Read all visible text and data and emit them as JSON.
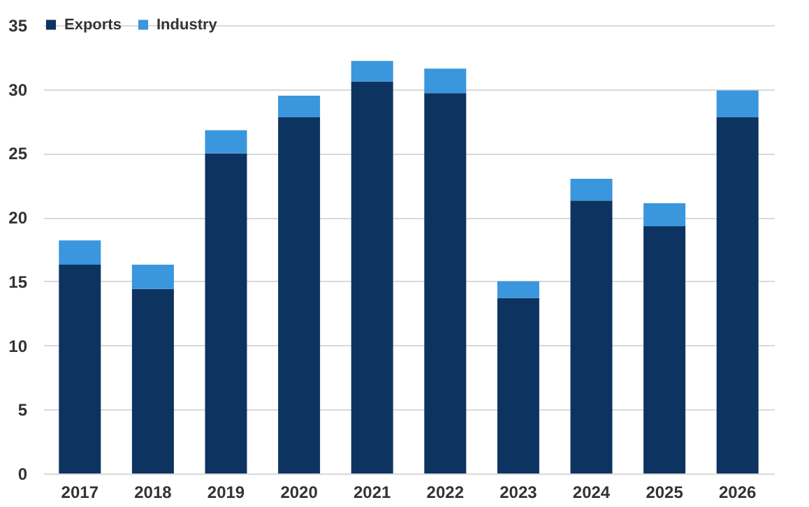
{
  "chart_data": {
    "type": "bar",
    "stacked": true,
    "categories": [
      "2017",
      "2018",
      "2019",
      "2020",
      "2021",
      "2022",
      "2023",
      "2024",
      "2025",
      "2026"
    ],
    "series": [
      {
        "name": "Exports",
        "color": "#0d3461",
        "values": [
          16.3,
          14.4,
          25.0,
          27.8,
          30.6,
          29.7,
          13.7,
          21.3,
          19.3,
          27.8
        ]
      },
      {
        "name": "Industry",
        "color": "#3a96dd",
        "values": [
          1.9,
          1.9,
          1.8,
          1.7,
          1.6,
          1.9,
          1.3,
          1.7,
          1.8,
          2.1
        ]
      }
    ],
    "ylim": [
      0,
      35
    ],
    "yticks": [
      0,
      5,
      10,
      15,
      20,
      25,
      30,
      35
    ],
    "grid": "y",
    "legend": "top"
  }
}
